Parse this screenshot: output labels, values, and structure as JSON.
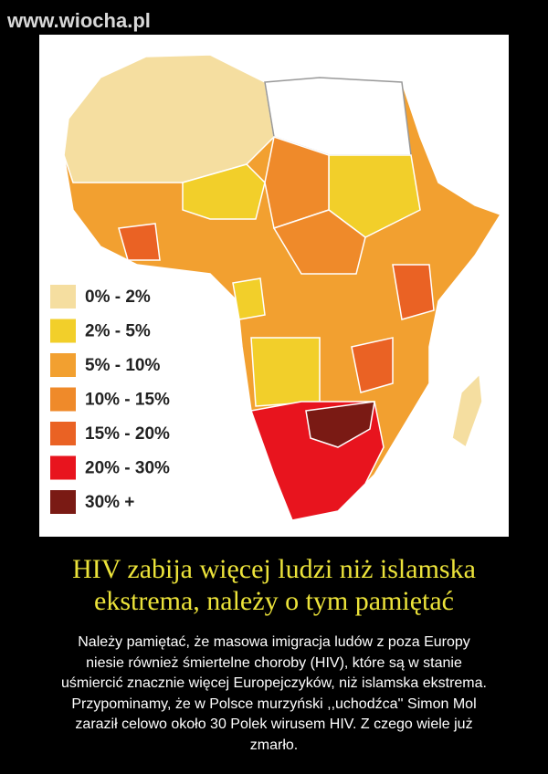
{
  "watermark": "www.wiocha.pl",
  "legend": [
    {
      "label": "0% - 2%",
      "color": "#f5dea0"
    },
    {
      "label": "2% - 5%",
      "color": "#f2cf2a"
    },
    {
      "label": "5% - 10%",
      "color": "#f2a030"
    },
    {
      "label": "10% - 15%",
      "color": "#ef8a2a"
    },
    {
      "label": "15% - 20%",
      "color": "#ea6224"
    },
    {
      "label": "20% - 30%",
      "color": "#e8141e"
    },
    {
      "label": "30% +",
      "color": "#7a1a14"
    }
  ],
  "title": [
    "HIV zabija więcej ludzi niż islamska",
    "ekstrema, należy o tym pamiętać"
  ],
  "body": [
    "Należy pamiętać, że masowa imigracja ludów z poza Europy",
    "niesie również śmiertelne choroby (HIV), które są w stanie",
    "uśmiercić znacznie więcej Europejczyków, niż islamska ekstrema.",
    "Przypominamy, że w Polsce murzyński ,,uchodźca'' Simon Mol",
    "zaraził celowo około 30 Polek wirusem HIV. Z czego wiele już",
    "zmarło."
  ]
}
